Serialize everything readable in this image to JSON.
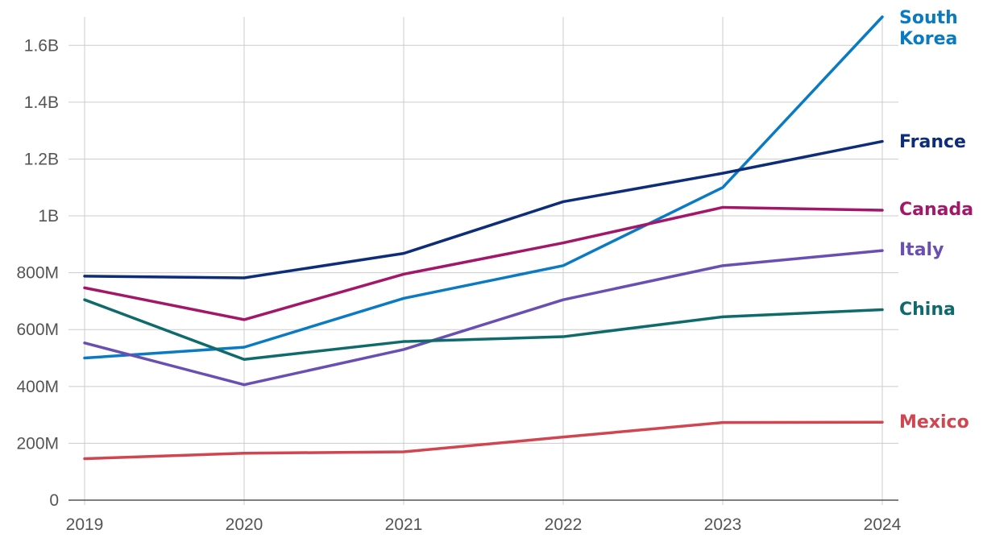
{
  "chart_data": {
    "type": "line",
    "title": "",
    "xlabel": "",
    "ylabel": "",
    "x": [
      "2019",
      "2020",
      "2021",
      "2022",
      "2023",
      "2024"
    ],
    "ylim": [
      0,
      1700000000
    ],
    "y_ticks": [
      {
        "value": 0,
        "label": "0"
      },
      {
        "value": 200000000,
        "label": "200M"
      },
      {
        "value": 400000000,
        "label": "400M"
      },
      {
        "value": 600000000,
        "label": "600M"
      },
      {
        "value": 800000000,
        "label": "800M"
      },
      {
        "value": 1000000000,
        "label": "1B"
      },
      {
        "value": 1200000000,
        "label": "1.2B"
      },
      {
        "value": 1400000000,
        "label": "1.4B"
      },
      {
        "value": 1600000000,
        "label": "1.6B"
      }
    ],
    "grid": true,
    "legend": "direct labels at right end of lines",
    "series": [
      {
        "name": "South Korea",
        "label_lines": [
          "South",
          "Korea"
        ],
        "color": "#0a7bc2",
        "values": [
          500000000,
          538000000,
          710000000,
          825000000,
          1100000000,
          1700000000
        ]
      },
      {
        "name": "France",
        "label_lines": [
          "France"
        ],
        "color": "#0d2d7a",
        "values": [
          788000000,
          782000000,
          868000000,
          1050000000,
          1150000000,
          1262000000
        ]
      },
      {
        "name": "Canada",
        "label_lines": [
          "Canada"
        ],
        "color": "#a3176a",
        "values": [
          747000000,
          635000000,
          795000000,
          905000000,
          1030000000,
          1020000000
        ]
      },
      {
        "name": "Italy",
        "label_lines": [
          "Italy"
        ],
        "color": "#6a4fb2",
        "values": [
          553000000,
          406000000,
          530000000,
          705000000,
          825000000,
          878000000
        ]
      },
      {
        "name": "China",
        "label_lines": [
          "China"
        ],
        "color": "#0f6b6b",
        "values": [
          705000000,
          495000000,
          558000000,
          575000000,
          645000000,
          670000000
        ]
      },
      {
        "name": "Mexico",
        "label_lines": [
          "Mexico"
        ],
        "color": "#d0454f",
        "values": [
          146000000,
          165000000,
          170000000,
          222000000,
          273000000,
          274000000
        ]
      }
    ]
  }
}
